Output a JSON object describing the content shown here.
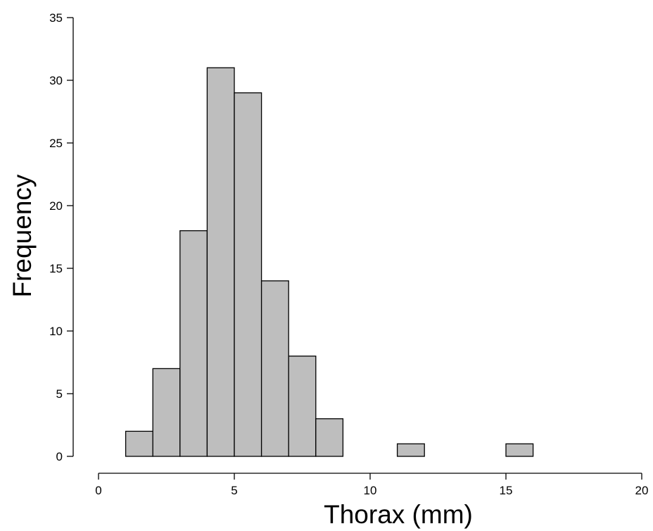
{
  "chart_data": {
    "type": "bar",
    "xlabel": "Thorax (mm)",
    "ylabel": "Frequency",
    "xlim": [
      0,
      20
    ],
    "ylim": [
      0,
      35
    ],
    "xticks": [
      "0",
      "5",
      "10",
      "15",
      "20"
    ],
    "yticks": [
      "0",
      "5",
      "10",
      "15",
      "20",
      "25",
      "30",
      "35"
    ],
    "grid": false,
    "bar_color": "#bebebe",
    "bin_width": 1,
    "bins": [
      {
        "x0": 1,
        "x1": 2,
        "count": 2
      },
      {
        "x0": 2,
        "x1": 3,
        "count": 7
      },
      {
        "x0": 3,
        "x1": 4,
        "count": 18
      },
      {
        "x0": 4,
        "x1": 5,
        "count": 31
      },
      {
        "x0": 5,
        "x1": 6,
        "count": 29
      },
      {
        "x0": 6,
        "x1": 7,
        "count": 14
      },
      {
        "x0": 7,
        "x1": 8,
        "count": 8
      },
      {
        "x0": 8,
        "x1": 9,
        "count": 3
      },
      {
        "x0": 9,
        "x1": 10,
        "count": 0
      },
      {
        "x0": 10,
        "x1": 11,
        "count": 0
      },
      {
        "x0": 11,
        "x1": 12,
        "count": 1
      },
      {
        "x0": 12,
        "x1": 13,
        "count": 0
      },
      {
        "x0": 13,
        "x1": 14,
        "count": 0
      },
      {
        "x0": 14,
        "x1": 15,
        "count": 0
      },
      {
        "x0": 15,
        "x1": 16,
        "count": 1
      }
    ]
  }
}
